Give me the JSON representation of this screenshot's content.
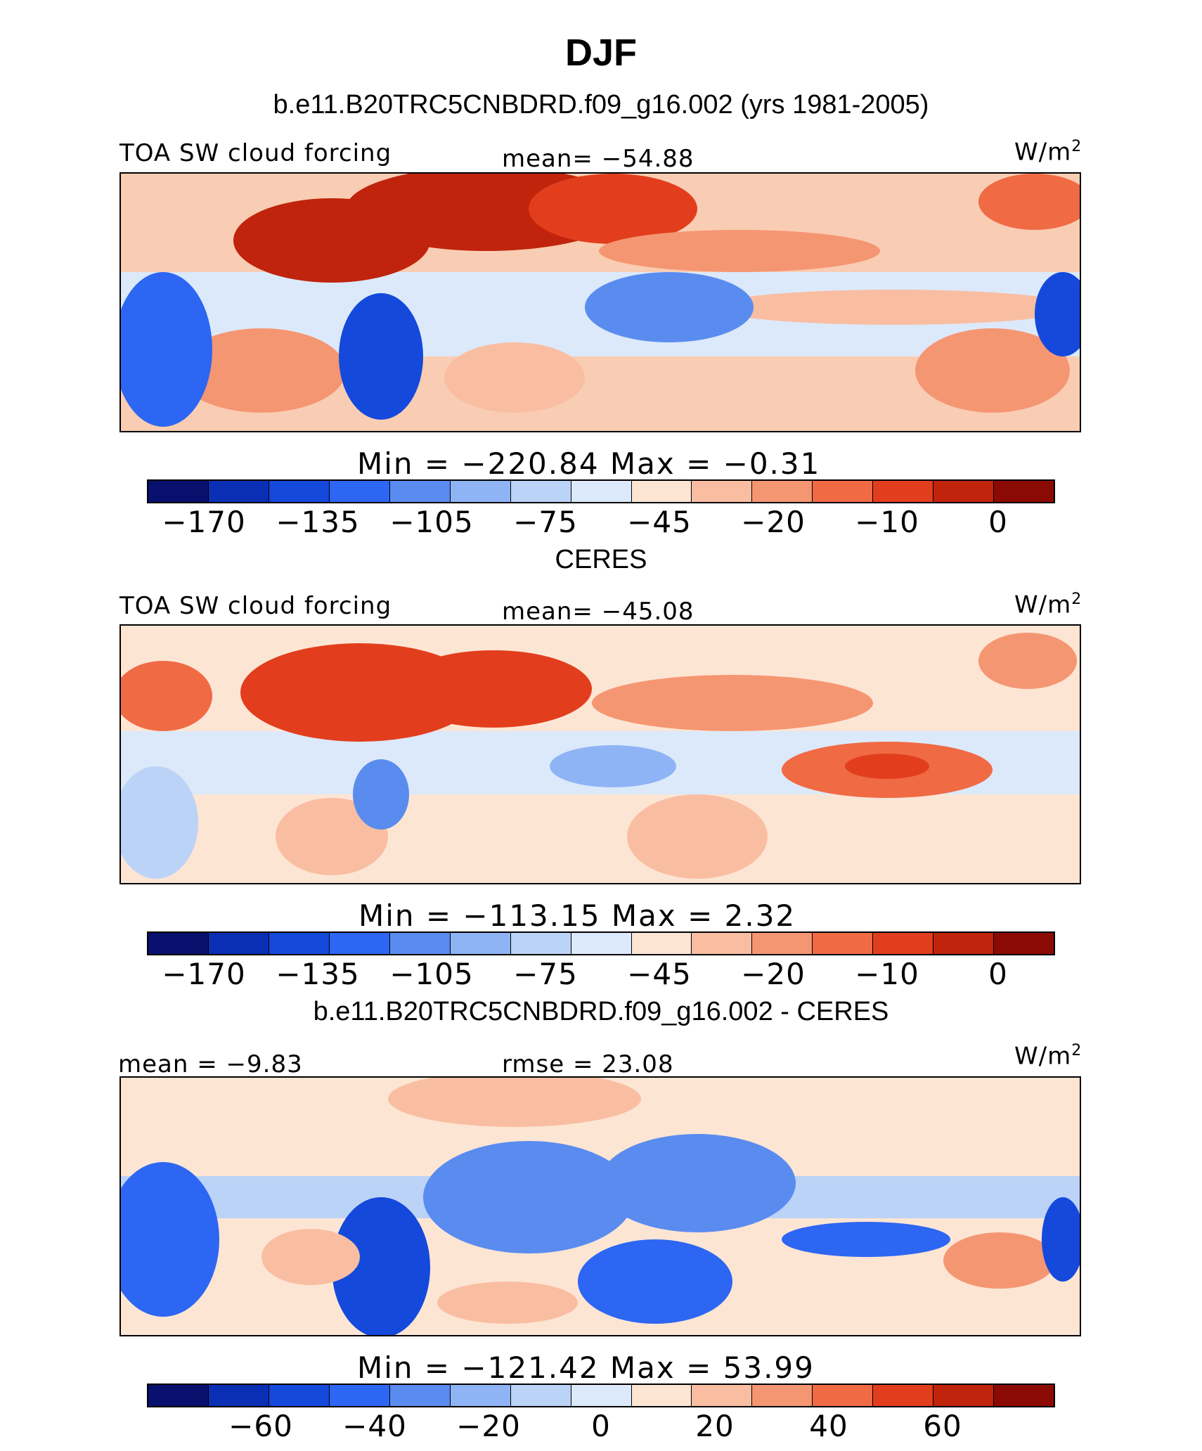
{
  "title": "DJF",
  "panels": [
    {
      "heading": "b.e11.B20TRC5CNBDRD.f09_g16.002 (yrs 1981-2005)",
      "left_label": "TOA SW cloud forcing",
      "center_label": "mean=  −54.88",
      "units": "W/m",
      "units_exp": "2",
      "minmax": "Min  =  −220.84  Max  =   −0.31",
      "ticks": [
        "−170",
        "−135",
        "−105",
        "−75",
        "−45",
        "−20",
        "−10",
        "0"
      ]
    },
    {
      "heading": "CERES",
      "left_label": "TOA SW cloud forcing",
      "center_label": "mean=  −45.08",
      "units": "W/m",
      "units_exp": "2",
      "minmax": "Min  =  −113.15  Max  =    2.32",
      "ticks": [
        "−170",
        "−135",
        "−105",
        "−75",
        "−45",
        "−20",
        "−10",
        "0"
      ]
    },
    {
      "heading": "b.e11.B20TRC5CNBDRD.f09_g16.002 - CERES",
      "left_label": "mean  =   −9.83",
      "center_label": "rmse  =   23.08",
      "units": "W/m",
      "units_exp": "2",
      "minmax": "Min  =  −121.42  Max  =   53.99",
      "ticks": [
        "−60",
        "−40",
        "−20",
        "0",
        "20",
        "40",
        "60"
      ]
    }
  ],
  "colorbar_colors": [
    "#08106e",
    "#0a2fb4",
    "#1449dc",
    "#2d66f2",
    "#5a8cf0",
    "#8fb4f5",
    "#bcd3f8",
    "#dce9fa",
    "#fde5d4",
    "#f9bea2",
    "#f59672",
    "#f06a44",
    "#e23e1d",
    "#c0240c",
    "#8c0a04"
  ]
}
